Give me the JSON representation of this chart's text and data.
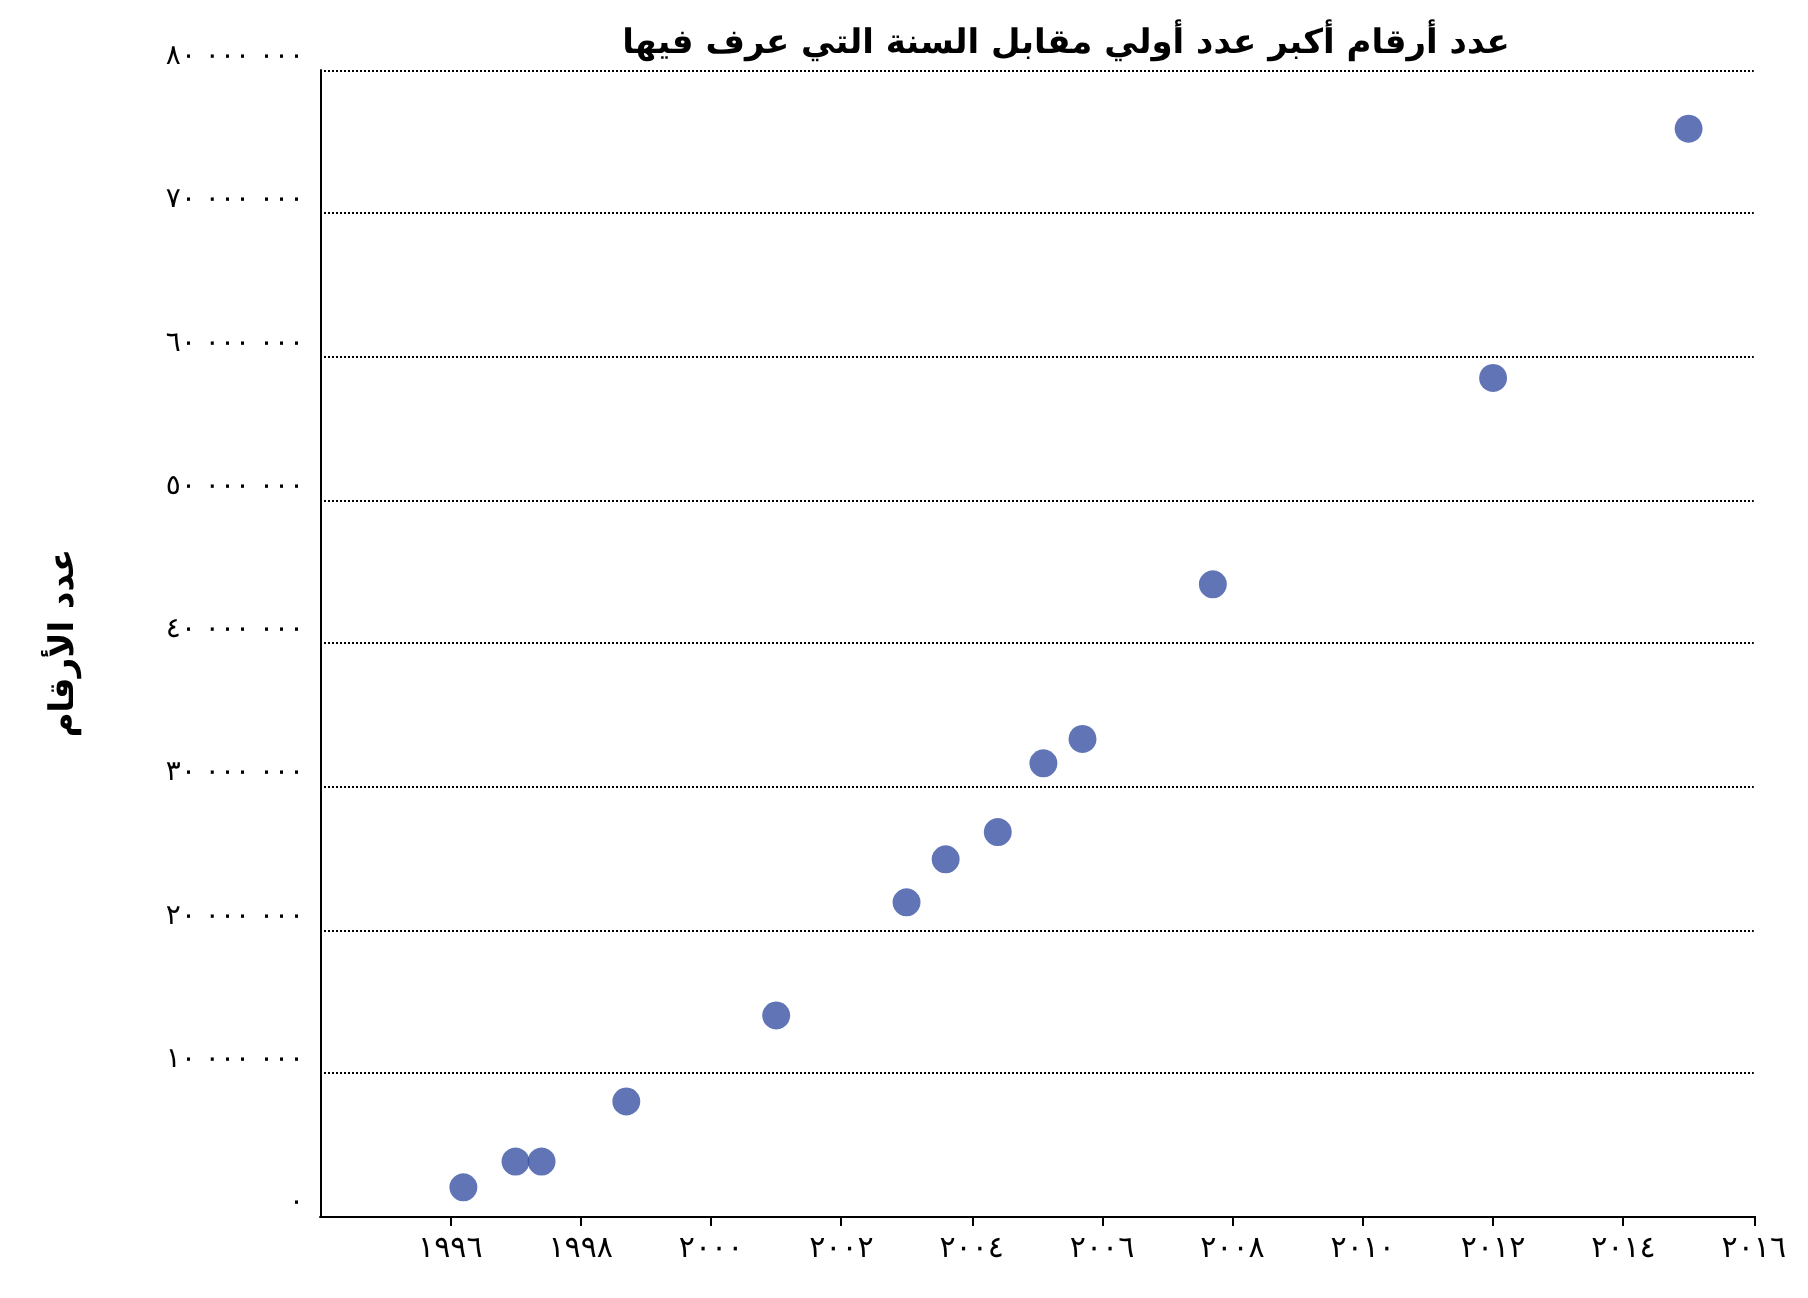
{
  "chart_data": {
    "type": "scatter",
    "title": "عدد أرقام أكبر عدد أولي مقابل السنة التي عرف فيها",
    "ylabel": "عدد الأرقام",
    "x": [
      1996.2,
      1997.0,
      1997.4,
      1998.7,
      2001.0,
      2003.0,
      2003.6,
      2004.4,
      2005.1,
      2005.7,
      2007.7,
      2012.0,
      2015.0
    ],
    "series": [
      {
        "color": "#3a53a4",
        "values": [
          2000000,
          3800000,
          3800000,
          8000000,
          14000000,
          21900000,
          24900000,
          26800000,
          31600000,
          33300000,
          44100000,
          58500000,
          75900000
        ]
      }
    ],
    "xlim": [
      1994,
      2016
    ],
    "xticks": [
      {
        "value": 1996,
        "label": "١٩٩٦"
      },
      {
        "value": 1998,
        "label": "١٩٩٨"
      },
      {
        "value": 2000,
        "label": "٢٠٠٠"
      },
      {
        "value": 2002,
        "label": "٢٠٠٢"
      },
      {
        "value": 2004,
        "label": "٢٠٠٤"
      },
      {
        "value": 2006,
        "label": "٢٠٠٦"
      },
      {
        "value": 2008,
        "label": "٢٠٠٨"
      },
      {
        "value": 2010,
        "label": "٢٠١٠"
      },
      {
        "value": 2012,
        "label": "٢٠١٢"
      },
      {
        "value": 2014,
        "label": "٢٠١٤"
      },
      {
        "value": 2016,
        "label": "٢٠١٦"
      }
    ],
    "ylim": [
      0,
      80000000
    ],
    "yticks": [
      {
        "value": 0,
        "label": "٠"
      },
      {
        "value": 10000000,
        "label": "١٠ ٠٠٠ ٠٠٠"
      },
      {
        "value": 20000000,
        "label": "٢٠ ٠٠٠ ٠٠٠"
      },
      {
        "value": 30000000,
        "label": "٣٠ ٠٠٠ ٠٠٠"
      },
      {
        "value": 40000000,
        "label": "٤٠ ٠٠٠ ٠٠٠"
      },
      {
        "value": 50000000,
        "label": "٥٠ ٠٠٠ ٠٠٠"
      },
      {
        "value": 60000000,
        "label": "٦٠ ٠٠٠ ٠٠٠"
      },
      {
        "value": 70000000,
        "label": "٧٠ ٠٠٠ ٠٠٠"
      },
      {
        "value": 80000000,
        "label": "٨٠ ٠٠٠ ٠٠٠"
      }
    ],
    "grid": "y",
    "marker": "circle"
  }
}
